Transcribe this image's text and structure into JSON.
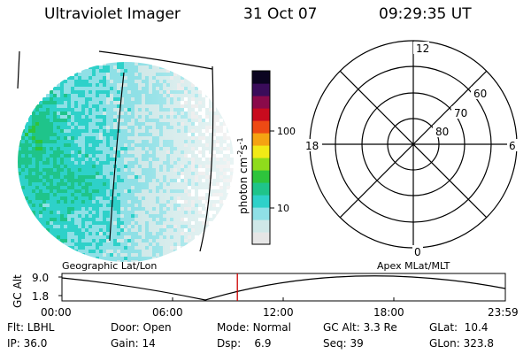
{
  "header": {
    "instrument": "Ultraviolet Imager",
    "date": "31 Oct 07",
    "time": "09:29:35 UT"
  },
  "colorbar": {
    "unit_label": "photon cm",
    "unit_sup1": "-2",
    "unit_mid": "s",
    "unit_sup2": "-1",
    "ticks": [
      "100",
      "10"
    ]
  },
  "polar_plot": {
    "hour_labels": {
      "top": "12",
      "left": "18",
      "right": "6",
      "bottom": "0"
    },
    "lat_labels": [
      "60",
      "70",
      "80"
    ]
  },
  "timeline": {
    "left_caption": "Geographic Lat/Lon",
    "right_caption": "Apex MLat/MLT",
    "axis_title": "GC Alt",
    "y_ticks": [
      "9.0",
      "1.8"
    ],
    "x_ticks": [
      "00:00",
      "06:00",
      "12:00",
      "18:00",
      "23:59"
    ],
    "marker_time": "09:29:35",
    "marker_color": "#cc0000"
  },
  "status": {
    "row1": [
      {
        "key": "Flt:",
        "value": "LBHL"
      },
      {
        "key": "Door:",
        "value": "Open"
      },
      {
        "key": "Mode:",
        "value": "Normal"
      },
      {
        "key": "GC Alt:",
        "value": "3.3 Re"
      },
      {
        "key": "GLat:",
        "value": "10.4"
      }
    ],
    "row2": [
      {
        "key": "IP:",
        "value": "36.0"
      },
      {
        "key": "Gain:",
        "value": "14"
      },
      {
        "key": "Dsp:",
        "value": "6.9"
      },
      {
        "key": "Seq:",
        "value": "39"
      },
      {
        "key": "GLon:",
        "value": "323.8"
      }
    ]
  },
  "colors": {
    "colormap": [
      "#e6e6e6",
      "#cfe8e8",
      "#8fe0e6",
      "#2ed1c9",
      "#1fc48a",
      "#2ec43c",
      "#8fdc1c",
      "#f2ea16",
      "#f5a312",
      "#ee4a14",
      "#c80b1e",
      "#8a0a4a",
      "#3a0c5a",
      "#0b0420"
    ]
  }
}
